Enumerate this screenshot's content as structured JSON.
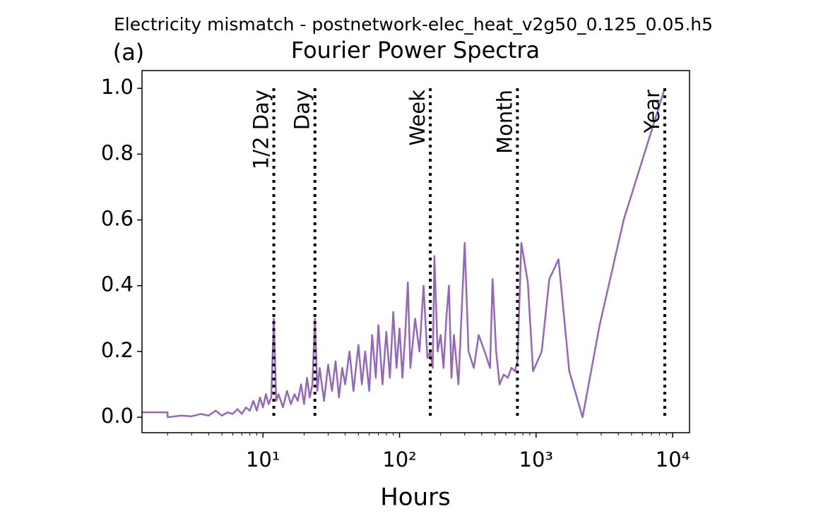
{
  "chart_data": {
    "type": "line",
    "suptitle": "Electricity mismatch - postnetwork-elec_heat_v2g50_0.125_0.05.h5",
    "panel_label": "(a)",
    "title": "Fourier Power Spectra",
    "xlabel": "Hours",
    "x_scale": "log",
    "color": "#9467bd",
    "xlim": [
      1.3,
      13300
    ],
    "ylim": [
      -0.047,
      1.054
    ],
    "xticks": [
      {
        "value": 10,
        "label": "10¹"
      },
      {
        "value": 100,
        "label": "10²"
      },
      {
        "value": 1000,
        "label": "10³"
      },
      {
        "value": 10000,
        "label": "10⁴"
      }
    ],
    "xminorticks": [
      2,
      3,
      4,
      5,
      6,
      7,
      8,
      9,
      20,
      30,
      40,
      50,
      60,
      70,
      80,
      90,
      200,
      300,
      400,
      500,
      600,
      700,
      800,
      900,
      2000,
      3000,
      4000,
      5000,
      6000,
      7000,
      8000,
      9000
    ],
    "yticks": [
      {
        "value": 0,
        "label": "0.0"
      },
      0.2,
      0.4,
      0.6,
      0.8,
      {
        "value": 1,
        "label": "1.0"
      }
    ],
    "vlines": [
      {
        "x": 12,
        "label": "1/2 Day"
      },
      {
        "x": 24,
        "label": "Day"
      },
      {
        "x": 168,
        "label": "Week"
      },
      {
        "x": 730,
        "label": "Month"
      },
      {
        "x": 8760,
        "label": "Year"
      }
    ],
    "x": [
      1.3,
      2.0,
      2.0,
      2.5,
      3,
      3.5,
      4,
      4.5,
      5,
      5.5,
      6,
      6.5,
      7,
      7.5,
      8,
      8.5,
      9,
      9.5,
      10,
      10.5,
      11,
      11.5,
      12,
      12.5,
      13,
      14,
      15,
      16,
      17,
      18,
      19,
      20,
      21,
      22,
      23,
      24,
      25,
      26,
      28,
      30,
      32,
      34,
      36,
      38,
      40,
      43,
      46,
      50,
      53,
      56,
      60,
      63,
      67,
      70,
      75,
      80,
      85,
      90,
      95,
      100,
      105,
      110,
      115,
      120,
      130,
      140,
      150,
      160,
      168,
      175,
      180,
      190,
      200,
      210,
      220,
      230,
      240,
      250,
      270,
      300,
      320,
      350,
      380,
      420,
      460,
      480,
      510,
      540,
      580,
      620,
      660,
      700,
      730,
      780,
      870,
      950,
      1100,
      1250,
      1460,
      1750,
      2190,
      2920,
      4380,
      8760
    ],
    "values": [
      0.015,
      0.015,
      0.0,
      0.005,
      0.003,
      0.01,
      0.005,
      0.02,
      0.005,
      0.015,
      0.01,
      0.025,
      0.01,
      0.03,
      0.02,
      0.05,
      0.02,
      0.06,
      0.03,
      0.07,
      0.04,
      0.06,
      0.3,
      0.05,
      0.07,
      0.03,
      0.08,
      0.04,
      0.07,
      0.05,
      0.1,
      0.04,
      0.12,
      0.06,
      0.1,
      0.3,
      0.08,
      0.15,
      0.05,
      0.16,
      0.08,
      0.17,
      0.06,
      0.15,
      0.1,
      0.2,
      0.08,
      0.22,
      0.1,
      0.2,
      0.08,
      0.25,
      0.12,
      0.28,
      0.1,
      0.26,
      0.12,
      0.32,
      0.15,
      0.27,
      0.12,
      0.25,
      0.41,
      0.15,
      0.3,
      0.2,
      0.4,
      0.18,
      0.2,
      0.15,
      0.49,
      0.2,
      0.25,
      0.15,
      0.3,
      0.4,
      0.12,
      0.25,
      0.1,
      0.53,
      0.2,
      0.15,
      0.25,
      0.2,
      0.15,
      0.42,
      0.2,
      0.1,
      0.13,
      0.12,
      0.15,
      0.14,
      0.17,
      0.53,
      0.41,
      0.14,
      0.2,
      0.42,
      0.48,
      0.14,
      0.0,
      0.28,
      0.6,
      1.0
    ]
  }
}
